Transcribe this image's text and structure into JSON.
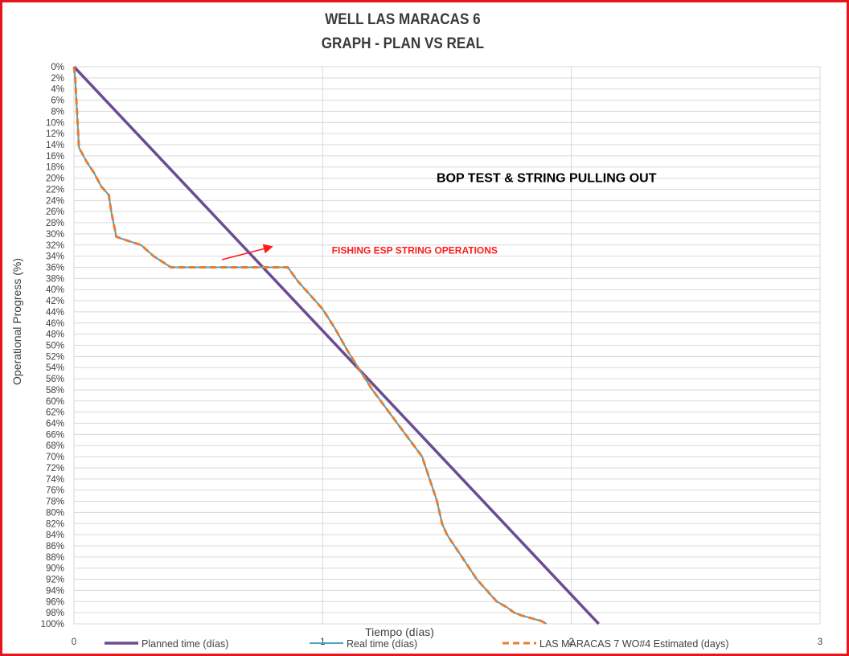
{
  "chart_data": {
    "type": "line",
    "title": "WELL LAS MARACAS 6",
    "subtitle": "GRAPH  - PLAN VS REAL",
    "xlabel": "Tiempo (días)",
    "ylabel": "Operational Progress (%)",
    "xlim": [
      0,
      3
    ],
    "x_ticks": [
      "0",
      "1",
      "2",
      "3"
    ],
    "ylim": [
      0,
      100
    ],
    "y_inverted": true,
    "y_tick_step": 2,
    "y_tick_suffix": "%",
    "grid": true,
    "legend_position": "bottom",
    "series": [
      {
        "name": "Planned time (días)",
        "color": "#6a4c93",
        "style": "solid-thick",
        "x": [
          0,
          2.11
        ],
        "y": [
          0,
          100
        ]
      },
      {
        "name": "Real time (días)",
        "color": "#4aa3c0",
        "style": "solid-thin",
        "x": [
          0,
          0.005,
          0.02,
          0.05,
          0.08,
          0.11,
          0.14,
          0.15,
          0.17,
          0.2,
          0.27,
          0.32,
          0.39,
          0.5,
          0.6,
          0.7,
          0.77,
          0.8,
          0.83,
          0.86,
          0.9,
          0.95,
          1.0,
          1.05,
          1.1,
          1.15,
          1.2,
          1.25,
          1.3,
          1.35,
          1.4,
          1.43,
          1.46,
          1.48,
          1.5,
          1.53,
          1.56,
          1.59,
          1.62,
          1.66,
          1.7,
          1.74,
          1.77,
          1.8,
          1.84,
          1.88,
          1.9
        ],
        "y": [
          0,
          2,
          14.5,
          17,
          19,
          21.5,
          23,
          26,
          30.5,
          31,
          32,
          34,
          36,
          36,
          36,
          36,
          36,
          36,
          36,
          36,
          38.5,
          41,
          43.5,
          47,
          51,
          54.5,
          58,
          61,
          64,
          67,
          70,
          74,
          78,
          82,
          84,
          86,
          88,
          90,
          92,
          94,
          96,
          97,
          98,
          98.5,
          99,
          99.5,
          100
        ]
      },
      {
        "name": "LAS MARACAS 7 WO#4 Estimated (days)",
        "color": "#e87d2f",
        "style": "dashed",
        "x": [
          0,
          0.005,
          0.02,
          0.05,
          0.08,
          0.11,
          0.14,
          0.15,
          0.17,
          0.2,
          0.27,
          0.32,
          0.39,
          0.5,
          0.6,
          0.7,
          0.77,
          0.8,
          0.83,
          0.86,
          0.9,
          0.95,
          1.0,
          1.05,
          1.1,
          1.15,
          1.2,
          1.25,
          1.3,
          1.35,
          1.4,
          1.43,
          1.46,
          1.48,
          1.5,
          1.53,
          1.56,
          1.59,
          1.62,
          1.66,
          1.7,
          1.74,
          1.77,
          1.8,
          1.84,
          1.88,
          1.9
        ],
        "y": [
          0,
          2,
          14.5,
          17,
          19,
          21.5,
          23,
          26,
          30.5,
          31,
          32,
          34,
          36,
          36,
          36,
          36,
          36,
          36,
          36,
          36,
          38.5,
          41,
          43.5,
          47,
          51,
          54.5,
          58,
          61,
          64,
          67,
          70,
          74,
          78,
          82,
          84,
          86,
          88,
          90,
          92,
          94,
          96,
          97,
          98,
          98.5,
          99,
          99.5,
          100
        ]
      }
    ],
    "annotations": [
      {
        "text": "BOP TEST & STRING PULLING OUT",
        "color": "#000000",
        "x": 1.9,
        "y": 20
      },
      {
        "text": "FISHING ESP STRING OPERATIONS",
        "color": "#ff1a1a",
        "x": 1.37,
        "y": 33,
        "arrow_to": {
          "x": 0.78,
          "y": 33.6
        }
      }
    ]
  },
  "frame_color": "#e8141c",
  "grid_color": "#d9d9d9"
}
